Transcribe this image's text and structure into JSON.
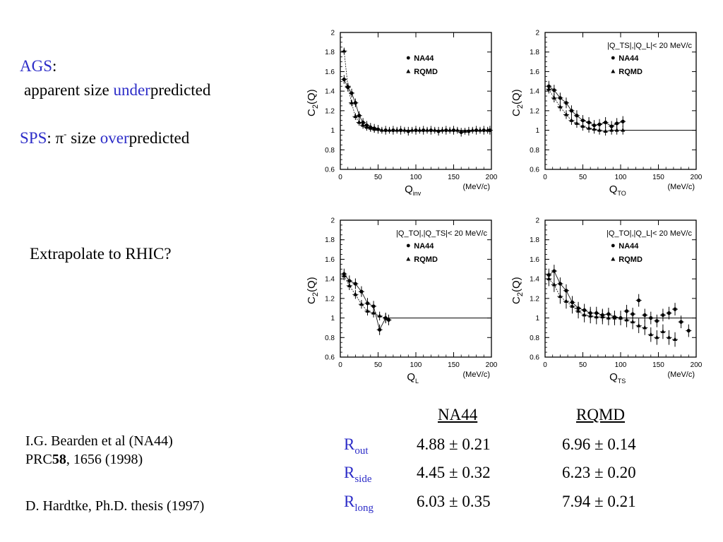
{
  "left": {
    "ags_label": "AGS",
    "ags_colon": ":",
    "ags_line_pre": "apparent size ",
    "ags_line_under": "under",
    "ags_line_post": "predicted",
    "sps_label": "SPS",
    "sps_colon": ": ",
    "sps_pi": "π",
    "sps_pi_sup": "-",
    "sps_size": " size ",
    "sps_over": "over",
    "sps_post": "predicted",
    "extrapolate": "Extrapolate to RHIC?",
    "ref1_line1": "I.G. Bearden et al (NA44)",
    "ref1_prc": "PRC",
    "ref1_vol": "58",
    "ref1_rest": ", 1656 (1998)",
    "ref2": "D. Hardtke, Ph.D. thesis (1997)"
  },
  "table": {
    "col_na44": "NA44",
    "col_rqmd": "RQMD",
    "rows": [
      {
        "label": "R",
        "sub": "out",
        "na44": "4.88 ± 0.21",
        "rqmd": "6.96 ± 0.14"
      },
      {
        "label": "R",
        "sub": "side",
        "na44": "4.45 ± 0.32",
        "rqmd": "6.23 ± 0.20"
      },
      {
        "label": "R",
        "sub": "long",
        "na44": "6.03 ± 0.35",
        "rqmd": "7.94 ± 0.21"
      }
    ]
  },
  "chart_data": [
    {
      "type": "scatter",
      "ylabel": "C2(Q)",
      "xlabel_main": "Q",
      "xlabel_sub": "inv",
      "xunit": "(MeV/c)",
      "xlim": [
        0,
        200
      ],
      "ylim": [
        0.6,
        2
      ],
      "xticks": [
        "0",
        "50",
        "100",
        "150",
        "200"
      ],
      "yticks": [
        "0.6",
        "0.8",
        "1",
        "1.2",
        "1.4",
        "1.6",
        "1.8",
        "2"
      ],
      "cut": "",
      "legend": [
        "NA44",
        "RQMD"
      ],
      "series": [
        {
          "name": "NA44",
          "marker": "circle",
          "points": [
            [
              5,
              1.52
            ],
            [
              10,
              1.44
            ],
            [
              15,
              1.38
            ],
            [
              20,
              1.28
            ],
            [
              25,
              1.15
            ],
            [
              30,
              1.08
            ],
            [
              35,
              1.05
            ],
            [
              40,
              1.03
            ],
            [
              45,
              1.02
            ],
            [
              50,
              1.01
            ],
            [
              60,
              1.0
            ],
            [
              70,
              1.0
            ],
            [
              80,
              1.0
            ],
            [
              90,
              0.99
            ],
            [
              100,
              1.0
            ],
            [
              110,
              1.0
            ],
            [
              120,
              1.0
            ],
            [
              130,
              0.99
            ],
            [
              140,
              1.0
            ],
            [
              150,
              1.0
            ],
            [
              160,
              0.98
            ],
            [
              170,
              0.99
            ],
            [
              180,
              1.0
            ],
            [
              190,
              1.0
            ],
            [
              198,
              1.0
            ]
          ],
          "err": 0.03
        },
        {
          "name": "RQMD",
          "marker": "triangle",
          "points": [
            [
              5,
              1.81
            ],
            [
              10,
              1.45
            ],
            [
              15,
              1.28
            ],
            [
              20,
              1.14
            ],
            [
              25,
              1.08
            ],
            [
              30,
              1.05
            ],
            [
              35,
              1.03
            ],
            [
              40,
              1.02
            ],
            [
              45,
              1.01
            ],
            [
              55,
              1.0
            ],
            [
              65,
              1.0
            ],
            [
              75,
              1.0
            ],
            [
              85,
              1.0
            ],
            [
              95,
              1.0
            ],
            [
              105,
              1.0
            ],
            [
              115,
              1.0
            ],
            [
              125,
              1.0
            ],
            [
              135,
              1.0
            ],
            [
              145,
              1.0
            ],
            [
              155,
              1.0
            ],
            [
              165,
              0.99
            ],
            [
              175,
              1.0
            ],
            [
              185,
              1.0
            ],
            [
              195,
              1.0
            ]
          ],
          "err": 0.02
        }
      ],
      "fit_line_end": 200
    },
    {
      "type": "scatter",
      "ylabel": "C2(Q)",
      "xlabel_main": "Q",
      "xlabel_sub": "TO",
      "xunit": "(MeV/c)",
      "xlim": [
        0,
        200
      ],
      "ylim": [
        0.6,
        2
      ],
      "xticks": [
        "0",
        "50",
        "100",
        "150",
        "200"
      ],
      "yticks": [
        "0.6",
        "0.8",
        "1",
        "1.2",
        "1.4",
        "1.6",
        "1.8",
        "2"
      ],
      "cut": "|Q_TS|,|Q_L|< 20 MeV/c",
      "legend": [
        "NA44",
        "RQMD"
      ],
      "series": [
        {
          "name": "NA44",
          "marker": "circle",
          "points": [
            [
              5,
              1.45
            ],
            [
              12,
              1.41
            ],
            [
              20,
              1.33
            ],
            [
              28,
              1.28
            ],
            [
              35,
              1.2
            ],
            [
              42,
              1.15
            ],
            [
              50,
              1.1
            ],
            [
              58,
              1.08
            ],
            [
              65,
              1.05
            ],
            [
              72,
              1.06
            ],
            [
              80,
              1.08
            ],
            [
              88,
              1.04
            ],
            [
              95,
              1.07
            ],
            [
              103,
              1.09
            ]
          ],
          "err": 0.04
        },
        {
          "name": "RQMD",
          "marker": "triangle",
          "points": [
            [
              5,
              1.42
            ],
            [
              12,
              1.33
            ],
            [
              20,
              1.24
            ],
            [
              28,
              1.16
            ],
            [
              35,
              1.1
            ],
            [
              42,
              1.07
            ],
            [
              50,
              1.04
            ],
            [
              58,
              1.02
            ],
            [
              65,
              1.01
            ],
            [
              72,
              1.0
            ],
            [
              80,
              0.99
            ],
            [
              88,
              1.0
            ],
            [
              95,
              1.0
            ],
            [
              103,
              1.0
            ]
          ],
          "err": 0.03
        }
      ],
      "fit_line_end": 200
    },
    {
      "type": "scatter",
      "ylabel": "C2(Q)",
      "xlabel_main": "Q",
      "xlabel_sub": "L",
      "xunit": "(MeV/c)",
      "xlim": [
        0,
        200
      ],
      "ylim": [
        0.6,
        2
      ],
      "xticks": [
        "0",
        "50",
        "100",
        "150",
        "200"
      ],
      "yticks": [
        "0.6",
        "0.8",
        "1",
        "1.2",
        "1.4",
        "1.6",
        "1.8",
        "2"
      ],
      "cut": "|Q_TO|,|Q_TS|< 20 MeV/c",
      "legend": [
        "NA44",
        "RQMD"
      ],
      "series": [
        {
          "name": "NA44",
          "marker": "circle",
          "points": [
            [
              5,
              1.45
            ],
            [
              12,
              1.38
            ],
            [
              20,
              1.35
            ],
            [
              28,
              1.27
            ],
            [
              36,
              1.15
            ],
            [
              44,
              1.12
            ],
            [
              52,
              0.88
            ],
            [
              60,
              1.0
            ],
            [
              64,
              0.98
            ]
          ],
          "err": 0.04
        },
        {
          "name": "RQMD",
          "marker": "triangle",
          "points": [
            [
              5,
              1.43
            ],
            [
              12,
              1.33
            ],
            [
              20,
              1.24
            ],
            [
              28,
              1.14
            ],
            [
              36,
              1.07
            ],
            [
              44,
              1.05
            ],
            [
              52,
              1.02
            ],
            [
              60,
              1.0
            ]
          ],
          "err": 0.03
        }
      ],
      "fit_line_end": 200
    },
    {
      "type": "scatter",
      "ylabel": "C2(Q)",
      "xlabel_main": "Q",
      "xlabel_sub": "TS",
      "xunit": "(MeV/c)",
      "xlim": [
        0,
        200
      ],
      "ylim": [
        0.6,
        2
      ],
      "xticks": [
        "0",
        "50",
        "100",
        "150",
        "200"
      ],
      "yticks": [
        "0.6",
        "0.8",
        "1",
        "1.2",
        "1.4",
        "1.6",
        "1.8",
        "2"
      ],
      "cut": "|Q_TO|,|Q_L|< 20 MeV/c",
      "legend": [
        "NA44",
        "RQMD"
      ],
      "series": [
        {
          "name": "NA44",
          "marker": "circle",
          "points": [
            [
              5,
              1.44
            ],
            [
              12,
              1.48
            ],
            [
              20,
              1.35
            ],
            [
              28,
              1.28
            ],
            [
              36,
              1.16
            ],
            [
              44,
              1.1
            ],
            [
              52,
              1.08
            ],
            [
              60,
              1.05
            ],
            [
              68,
              1.05
            ],
            [
              76,
              1.03
            ],
            [
              84,
              1.04
            ],
            [
              92,
              1.01
            ],
            [
              100,
              1.0
            ],
            [
              108,
              1.07
            ],
            [
              116,
              1.04
            ],
            [
              124,
              1.18
            ],
            [
              132,
              1.03
            ],
            [
              140,
              1.0
            ],
            [
              148,
              0.97
            ],
            [
              156,
              1.03
            ],
            [
              164,
              1.05
            ],
            [
              172,
              1.09
            ],
            [
              180,
              0.96
            ],
            [
              190,
              0.87
            ]
          ],
          "err": 0.05
        },
        {
          "name": "RQMD",
          "marker": "triangle",
          "points": [
            [
              5,
              1.4
            ],
            [
              12,
              1.34
            ],
            [
              20,
              1.22
            ],
            [
              28,
              1.17
            ],
            [
              36,
              1.12
            ],
            [
              44,
              1.07
            ],
            [
              52,
              1.03
            ],
            [
              60,
              1.02
            ],
            [
              68,
              1.01
            ],
            [
              76,
              1.01
            ],
            [
              84,
              1.0
            ],
            [
              92,
              1.0
            ],
            [
              100,
              1.0
            ],
            [
              108,
              0.98
            ],
            [
              116,
              0.96
            ],
            [
              124,
              0.92
            ],
            [
              132,
              0.9
            ],
            [
              140,
              0.83
            ],
            [
              148,
              0.8
            ],
            [
              156,
              0.86
            ],
            [
              164,
              0.8
            ],
            [
              172,
              0.78
            ]
          ],
          "err": 0.06
        }
      ],
      "fit_line_end": 200
    }
  ]
}
